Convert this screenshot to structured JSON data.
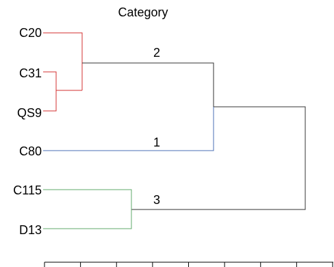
{
  "title": "Category",
  "colors": {
    "red": "#d32f2f",
    "blue": "#4a6fb5",
    "green": "#5fa86a",
    "black": "#333333"
  },
  "leaves": [
    "C20",
    "C31",
    "QS9",
    "C80",
    "C115",
    "D13"
  ],
  "cluster_labels": [
    "2",
    "1",
    "3"
  ],
  "axis_tick_count": 9
}
